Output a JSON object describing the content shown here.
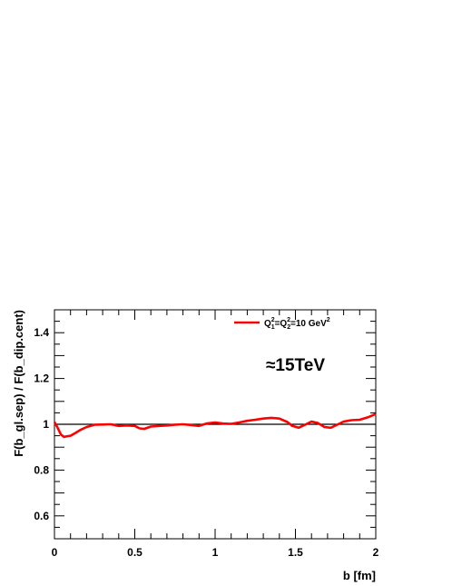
{
  "chart_data": {
    "type": "line",
    "xlabel": "b [fm]",
    "ylabel": "F(b_gl.sep) / F(b_dip.cent)",
    "xlim": [
      0,
      2
    ],
    "ylim": [
      0.5,
      1.5
    ],
    "x_ticks": [
      {
        "value": 0,
        "label": "0"
      },
      {
        "value": 0.5,
        "label": "0.5"
      },
      {
        "value": 1,
        "label": "1"
      },
      {
        "value": 1.5,
        "label": "1.5"
      },
      {
        "value": 2,
        "label": "2"
      }
    ],
    "y_ticks": [
      {
        "value": 0.6,
        "label": "0.6"
      },
      {
        "value": 0.8,
        "label": "0.8"
      },
      {
        "value": 1.0,
        "label": "1"
      },
      {
        "value": 1.2,
        "label": "1.2"
      },
      {
        "value": 1.4,
        "label": "1.4"
      }
    ],
    "reference_line": {
      "y": 1.0,
      "color": "#000000"
    },
    "annotation": "≈15TeV",
    "legend": {
      "position": "top-right",
      "entries": [
        {
          "label_parts": [
            "Q",
            "1",
            "2",
            "=Q",
            "2",
            "2",
            "=10  GeV",
            "2"
          ]
        }
      ]
    },
    "series": [
      {
        "color": "#ff0000",
        "x": [
          0,
          0.02,
          0.04,
          0.06,
          0.08,
          0.1,
          0.13,
          0.16,
          0.2,
          0.25,
          0.3,
          0.35,
          0.4,
          0.45,
          0.5,
          0.53,
          0.56,
          0.6,
          0.65,
          0.7,
          0.75,
          0.8,
          0.85,
          0.9,
          0.95,
          1.0,
          1.05,
          1.1,
          1.15,
          1.2,
          1.25,
          1.3,
          1.35,
          1.4,
          1.45,
          1.48,
          1.52,
          1.56,
          1.6,
          1.64,
          1.68,
          1.72,
          1.76,
          1.8,
          1.85,
          1.9,
          1.95,
          2.0
        ],
        "y": [
          1.01,
          0.985,
          0.955,
          0.945,
          0.948,
          0.95,
          0.962,
          0.975,
          0.988,
          0.998,
          0.999,
          1.0,
          0.993,
          0.995,
          0.993,
          0.982,
          0.98,
          0.99,
          0.993,
          0.995,
          0.998,
          1.0,
          0.997,
          0.993,
          1.004,
          1.008,
          1.003,
          1.002,
          1.008,
          1.015,
          1.02,
          1.025,
          1.028,
          1.025,
          1.01,
          0.993,
          0.985,
          0.998,
          1.012,
          1.005,
          0.988,
          0.985,
          0.998,
          1.012,
          1.018,
          1.02,
          1.03,
          1.045
        ]
      }
    ]
  }
}
